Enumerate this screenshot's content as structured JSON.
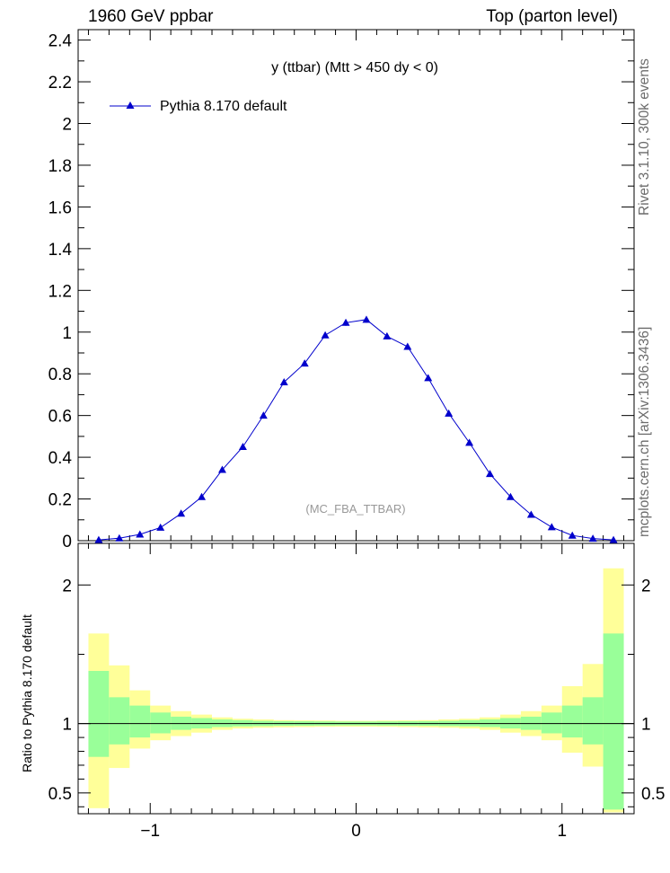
{
  "header": {
    "left": "1960 GeV ppbar",
    "right": "Top (parton level)"
  },
  "side_labels": {
    "rivet": "Rivet 3.1.10,  300k events",
    "mcplots": "mcplots.cern.ch [arXiv:1306.3436]"
  },
  "colors": {
    "series": "#0000cc",
    "band_inner": "#99ff99",
    "band_outer": "#ffff99",
    "watermark": "#999999"
  },
  "chart_data": [
    {
      "type": "line",
      "title": "y (ttbar) (Mtt > 450 dy < 0)",
      "watermark": "(MC_FBA_TTBAR)",
      "xlabel": "",
      "ylabel": "",
      "xlim": [
        -1.35,
        1.35
      ],
      "ylim": [
        0,
        2.45
      ],
      "yticks": [
        "0",
        "0.2",
        "0.4",
        "0.6",
        "0.8",
        "1",
        "1.2",
        "1.4",
        "1.6",
        "1.8",
        "2",
        "2.2",
        "2.4"
      ],
      "legend": {
        "position": "top-left",
        "entries": [
          "Pythia 8.170 default"
        ]
      },
      "series": [
        {
          "name": "Pythia 8.170 default",
          "marker": "triangle",
          "x": [
            -1.25,
            -1.15,
            -1.05,
            -0.95,
            -0.85,
            -0.75,
            -0.65,
            -0.55,
            -0.45,
            -0.35,
            -0.25,
            -0.15,
            -0.05,
            0.05,
            0.15,
            0.25,
            0.35,
            0.45,
            0.55,
            0.65,
            0.75,
            0.85,
            0.95,
            1.05,
            1.15,
            1.25
          ],
          "y": [
            0.004,
            0.012,
            0.03,
            0.063,
            0.13,
            0.21,
            0.34,
            0.45,
            0.6,
            0.76,
            0.85,
            0.985,
            1.045,
            1.06,
            0.98,
            0.93,
            0.78,
            0.61,
            0.47,
            0.32,
            0.21,
            0.125,
            0.065,
            0.025,
            0.01,
            0.004
          ],
          "yerr": [
            0.002,
            0.003,
            0.004,
            0.006,
            0.008,
            0.008,
            0.01,
            0.01,
            0.011,
            0.012,
            0.013,
            0.014,
            0.015,
            0.015,
            0.014,
            0.013,
            0.012,
            0.011,
            0.01,
            0.01,
            0.008,
            0.007,
            0.006,
            0.004,
            0.003,
            0.002
          ]
        }
      ]
    },
    {
      "type": "area",
      "title": "",
      "xlabel": "",
      "ylabel": "Ratio to Pythia 8.170 default",
      "xlim": [
        -1.35,
        1.35
      ],
      "ylim": [
        0.35,
        2.3
      ],
      "yticks": [
        "0.5",
        "1",
        "2"
      ],
      "xticks": [
        "−1",
        "0",
        "1"
      ],
      "bins": [
        -1.3,
        -1.2,
        -1.1,
        -1.0,
        -0.9,
        -0.8,
        -0.7,
        -0.6,
        -0.5,
        -0.4,
        -0.3,
        -0.2,
        -0.1,
        0.0,
        0.1,
        0.2,
        0.3,
        0.4,
        0.5,
        0.6,
        0.7,
        0.8,
        0.9,
        1.0,
        1.1,
        1.2,
        1.3
      ],
      "ratio": [
        1,
        1,
        1,
        1,
        1,
        1,
        1,
        1,
        1,
        1,
        1,
        1,
        1,
        1,
        1,
        1,
        1,
        1,
        1,
        1,
        1,
        1,
        1,
        1,
        1,
        1
      ],
      "band_inner_low": [
        0.76,
        0.85,
        0.9,
        0.93,
        0.955,
        0.965,
        0.975,
        0.98,
        0.982,
        0.984,
        0.985,
        0.986,
        0.987,
        0.987,
        0.986,
        0.985,
        0.984,
        0.982,
        0.98,
        0.975,
        0.965,
        0.955,
        0.93,
        0.9,
        0.85,
        0.38
      ],
      "band_inner_high": [
        1.38,
        1.19,
        1.13,
        1.08,
        1.05,
        1.04,
        1.03,
        1.025,
        1.02,
        1.018,
        1.017,
        1.016,
        1.015,
        1.015,
        1.016,
        1.017,
        1.018,
        1.02,
        1.025,
        1.03,
        1.04,
        1.05,
        1.08,
        1.13,
        1.19,
        1.65
      ],
      "band_outer_low": [
        0.39,
        0.68,
        0.82,
        0.88,
        0.91,
        0.935,
        0.955,
        0.965,
        0.97,
        0.973,
        0.975,
        0.977,
        0.978,
        0.978,
        0.977,
        0.975,
        0.973,
        0.97,
        0.965,
        0.955,
        0.935,
        0.91,
        0.88,
        0.79,
        0.69,
        0.36
      ],
      "band_outer_high": [
        1.65,
        1.42,
        1.24,
        1.13,
        1.09,
        1.065,
        1.045,
        1.035,
        1.03,
        1.025,
        1.023,
        1.022,
        1.02,
        1.02,
        1.022,
        1.023,
        1.025,
        1.03,
        1.035,
        1.045,
        1.065,
        1.09,
        1.13,
        1.27,
        1.43,
        2.12
      ]
    }
  ]
}
